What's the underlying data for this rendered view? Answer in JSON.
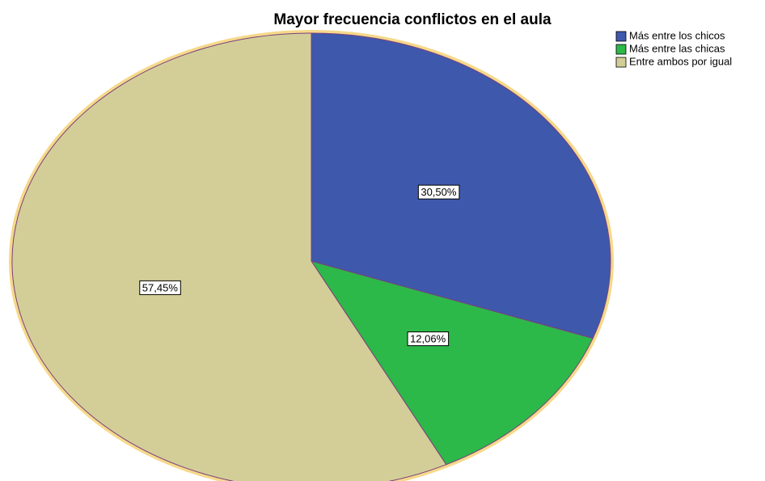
{
  "chart_data": {
    "type": "pie",
    "title": "Mayor frecuencia conflictos en el aula",
    "categories": [
      "Más entre los chicos",
      "Más entre las chicas",
      "Entre ambos por igual"
    ],
    "values": [
      30.5,
      12.06,
      57.45
    ],
    "value_labels": [
      "30,50%",
      "12,06%",
      "57,45%"
    ],
    "colors": [
      "#3e58ac",
      "#2db84a",
      "#d3ce97"
    ],
    "legend": "top-right"
  }
}
